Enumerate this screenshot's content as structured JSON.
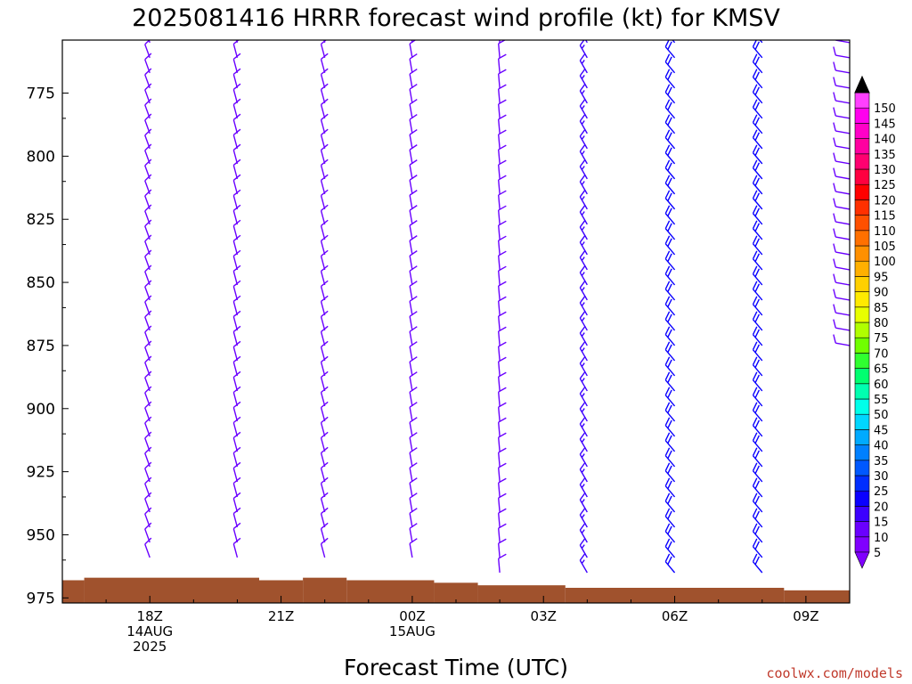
{
  "chart_data": {
    "type": "wind-barb time-height profile",
    "title": "2025081416 HRRR forecast wind profile (kt) for KMSV",
    "xlabel": "Forecast Time (UTC)",
    "credit": "coolwx.com/models",
    "x_unit": "hours after 2025-08-14 16Z",
    "xlim": [
      0,
      18
    ],
    "x_ticks": [
      {
        "hour": 2,
        "lines": [
          "18Z",
          "14AUG",
          "2025"
        ]
      },
      {
        "hour": 5,
        "lines": [
          "21Z"
        ]
      },
      {
        "hour": 8,
        "lines": [
          "00Z",
          "15AUG"
        ]
      },
      {
        "hour": 11,
        "lines": [
          "03Z"
        ]
      },
      {
        "hour": 14,
        "lines": [
          "06Z"
        ]
      },
      {
        "hour": 17,
        "lines": [
          "09Z"
        ]
      }
    ],
    "y_label_unit": "hPa",
    "ylim": [
      754,
      977
    ],
    "y_ticks": [
      775,
      800,
      825,
      850,
      875,
      900,
      925,
      950,
      975
    ],
    "colorbar": {
      "unit": "kt",
      "levels": [
        5,
        10,
        15,
        20,
        25,
        30,
        35,
        40,
        45,
        50,
        55,
        60,
        65,
        70,
        75,
        80,
        85,
        90,
        95,
        100,
        105,
        110,
        115,
        120,
        125,
        130,
        135,
        140,
        145,
        150
      ],
      "colors": [
        "#8000ff",
        "#6a00ff",
        "#3c00ff",
        "#0a00ff",
        "#002eff",
        "#0058ff",
        "#0080ff",
        "#00aaff",
        "#00d6ff",
        "#00ffea",
        "#00ffb0",
        "#00ff70",
        "#30ff30",
        "#70ff00",
        "#b0ff00",
        "#e8ff00",
        "#ffea00",
        "#ffd000",
        "#ffb000",
        "#ff9000",
        "#ff7000",
        "#ff5000",
        "#ff3000",
        "#ff0000",
        "#ff0040",
        "#ff0070",
        "#ff00a0",
        "#ff00c8",
        "#ff00ee",
        "#ff40ff"
      ]
    },
    "barb_levels_hpa": [
      755,
      761,
      767,
      773,
      779,
      785,
      791,
      797,
      803,
      809,
      815,
      821,
      827,
      833,
      839,
      845,
      851,
      857,
      863,
      869,
      875,
      881,
      887,
      893,
      899,
      905,
      911,
      917,
      923,
      929,
      935,
      941,
      947,
      953,
      959,
      965
    ],
    "columns": [
      {
        "hour": 2,
        "bottom_hpa": 959,
        "dir": 340,
        "spd": 10
      },
      {
        "hour": 4,
        "bottom_hpa": 959,
        "dir": 345,
        "spd": 10
      },
      {
        "hour": 6,
        "bottom_hpa": 959,
        "dir": 345,
        "spd": 10
      },
      {
        "hour": 8,
        "bottom_hpa": 959,
        "dir": 350,
        "spd": 10
      },
      {
        "hour": 10,
        "bottom_hpa": 965,
        "dir": 355,
        "spd": 10
      },
      {
        "hour": 12,
        "bottom_hpa": 965,
        "dir": 330,
        "spd": 15
      },
      {
        "hour": 14,
        "bottom_hpa": 965,
        "dir": 320,
        "spd": 20
      },
      {
        "hour": 16,
        "bottom_hpa": 965,
        "dir": 320,
        "spd": 20
      },
      {
        "hour": 18,
        "bottom_hpa": 875,
        "dir": 280,
        "spd": 10
      }
    ],
    "terrain_hpa": [
      {
        "x0": 0,
        "x1": 0.5,
        "p": 968
      },
      {
        "x0": 0.5,
        "x1": 4.5,
        "p": 967
      },
      {
        "x0": 4.5,
        "x1": 5.5,
        "p": 968
      },
      {
        "x0": 5.5,
        "x1": 6.5,
        "p": 967
      },
      {
        "x0": 6.5,
        "x1": 8.5,
        "p": 968
      },
      {
        "x0": 8.5,
        "x1": 9.5,
        "p": 969
      },
      {
        "x0": 9.5,
        "x1": 11.5,
        "p": 970
      },
      {
        "x0": 11.5,
        "x1": 16.5,
        "p": 971
      },
      {
        "x0": 16.5,
        "x1": 18,
        "p": 972
      }
    ]
  }
}
